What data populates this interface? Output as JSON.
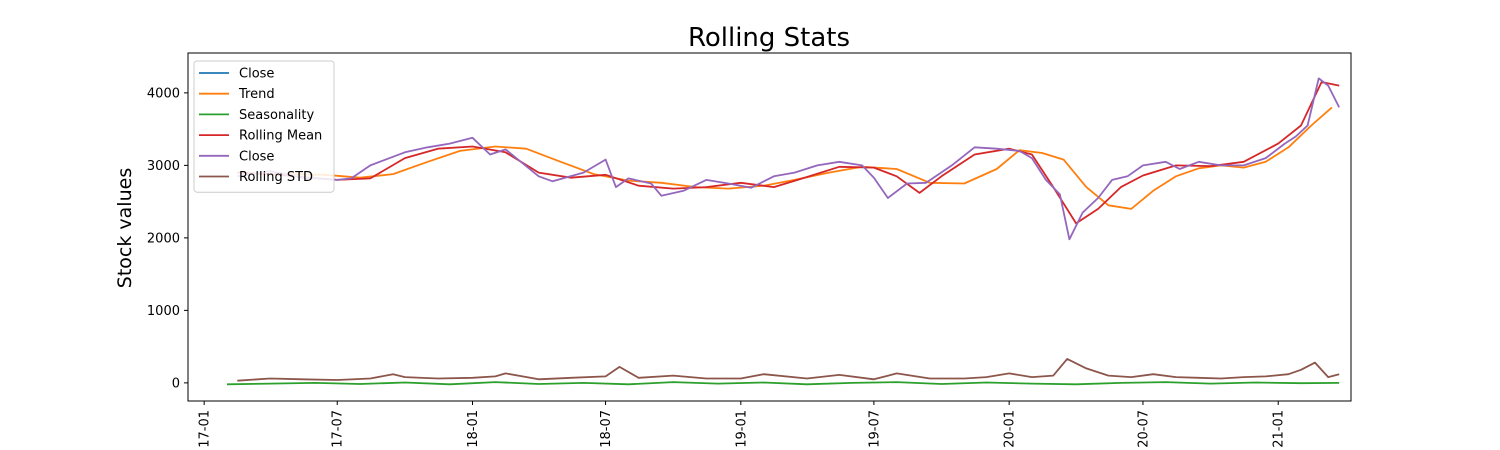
{
  "chart_data": {
    "type": "line",
    "title": "Rolling Stats",
    "xlabel": "",
    "ylabel": "Stock values",
    "x_type": "date",
    "xlim": [
      "2016-12-10",
      "2021-04-10"
    ],
    "ylim": [
      -250,
      4550
    ],
    "x_ticks": [
      {
        "date": "2017-01-01",
        "label": "17-01"
      },
      {
        "date": "2017-07-01",
        "label": "17-07"
      },
      {
        "date": "2018-01-01",
        "label": "18-01"
      },
      {
        "date": "2018-07-01",
        "label": "18-07"
      },
      {
        "date": "2019-01-01",
        "label": "19-01"
      },
      {
        "date": "2019-07-01",
        "label": "19-07"
      },
      {
        "date": "2020-01-01",
        "label": "20-01"
      },
      {
        "date": "2020-07-01",
        "label": "20-07"
      },
      {
        "date": "2021-01-01",
        "label": "21-01"
      }
    ],
    "y_ticks": [
      0,
      1000,
      2000,
      3000,
      4000
    ],
    "legend_position": "upper-left",
    "series": [
      {
        "name": "Close",
        "color": "#1f77b4",
        "x": [],
        "y": []
      },
      {
        "name": "Trend",
        "color": "#ff7f0e",
        "x": [
          "2017-03-15",
          "2017-05-01",
          "2017-06-15",
          "2017-08-01",
          "2017-09-15",
          "2017-11-01",
          "2017-12-15",
          "2018-02-01",
          "2018-03-15",
          "2018-05-01",
          "2018-06-15",
          "2018-08-01",
          "2018-09-15",
          "2018-11-01",
          "2018-12-15",
          "2019-02-01",
          "2019-03-15",
          "2019-05-01",
          "2019-06-15",
          "2019-08-01",
          "2019-09-15",
          "2019-11-01",
          "2019-12-15",
          "2020-01-15",
          "2020-02-15",
          "2020-03-15",
          "2020-04-15",
          "2020-05-15",
          "2020-06-15",
          "2020-07-15",
          "2020-08-15",
          "2020-09-15",
          "2020-10-15",
          "2020-11-15",
          "2020-12-15",
          "2021-01-15",
          "2021-02-15",
          "2021-03-15"
        ],
        "y": [
          2880,
          2880,
          2870,
          2830,
          2880,
          3050,
          3200,
          3260,
          3230,
          3050,
          2880,
          2790,
          2760,
          2700,
          2680,
          2720,
          2800,
          2900,
          2980,
          2950,
          2760,
          2750,
          2950,
          3210,
          3170,
          3080,
          2700,
          2450,
          2400,
          2650,
          2850,
          2960,
          3000,
          2970,
          3050,
          3250,
          3550,
          3800
        ]
      },
      {
        "name": "Seasonality",
        "color": "#2ca02c",
        "x": [
          "2017-02-01",
          "2017-04-01",
          "2017-06-01",
          "2017-08-01",
          "2017-10-01",
          "2017-12-01",
          "2018-02-01",
          "2018-04-01",
          "2018-06-01",
          "2018-08-01",
          "2018-10-01",
          "2018-12-01",
          "2019-02-01",
          "2019-04-01",
          "2019-06-01",
          "2019-08-01",
          "2019-10-01",
          "2019-12-01",
          "2020-02-01",
          "2020-04-01",
          "2020-06-01",
          "2020-08-01",
          "2020-10-01",
          "2020-12-01",
          "2021-02-01",
          "2021-03-25"
        ],
        "y": [
          -20,
          -10,
          0,
          -15,
          5,
          -20,
          10,
          -15,
          0,
          -20,
          10,
          -10,
          5,
          -20,
          0,
          10,
          -15,
          5,
          -10,
          -20,
          0,
          10,
          -10,
          5,
          -5,
          0
        ]
      },
      {
        "name": "Rolling Mean",
        "color": "#d62728",
        "x": [
          "2017-02-15",
          "2017-04-01",
          "2017-05-15",
          "2017-07-01",
          "2017-08-15",
          "2017-10-01",
          "2017-11-15",
          "2018-01-01",
          "2018-02-15",
          "2018-04-01",
          "2018-05-15",
          "2018-07-01",
          "2018-08-15",
          "2018-10-01",
          "2018-11-15",
          "2019-01-01",
          "2019-02-15",
          "2019-04-01",
          "2019-05-15",
          "2019-07-01",
          "2019-08-01",
          "2019-09-01",
          "2019-10-01",
          "2019-11-15",
          "2020-01-01",
          "2020-02-01",
          "2020-03-01",
          "2020-04-01",
          "2020-05-01",
          "2020-06-01",
          "2020-07-01",
          "2020-08-15",
          "2020-10-01",
          "2020-11-15",
          "2021-01-01",
          "2021-02-01",
          "2021-03-01",
          "2021-03-25"
        ],
        "y": [
          2900,
          2880,
          2840,
          2800,
          2820,
          3100,
          3230,
          3260,
          3180,
          2900,
          2830,
          2870,
          2720,
          2680,
          2700,
          2760,
          2700,
          2840,
          2980,
          2970,
          2850,
          2620,
          2850,
          3150,
          3230,
          3150,
          2700,
          2200,
          2400,
          2700,
          2860,
          3000,
          2990,
          3050,
          3300,
          3550,
          4150,
          4100
        ]
      },
      {
        "name": "Close",
        "color": "#9467bd",
        "x": [
          "2017-02-15",
          "2017-04-01",
          "2017-05-15",
          "2017-07-01",
          "2017-07-20",
          "2017-08-15",
          "2017-10-01",
          "2017-11-01",
          "2017-12-01",
          "2018-01-01",
          "2018-01-25",
          "2018-02-15",
          "2018-04-01",
          "2018-04-20",
          "2018-06-01",
          "2018-07-01",
          "2018-07-15",
          "2018-08-01",
          "2018-09-01",
          "2018-09-15",
          "2018-10-15",
          "2018-11-15",
          "2018-12-15",
          "2019-01-15",
          "2019-02-15",
          "2019-03-15",
          "2019-04-15",
          "2019-05-15",
          "2019-06-15",
          "2019-07-01",
          "2019-07-20",
          "2019-08-15",
          "2019-09-10",
          "2019-10-15",
          "2019-11-15",
          "2019-12-15",
          "2020-01-15",
          "2020-02-01",
          "2020-02-20",
          "2020-03-10",
          "2020-03-23",
          "2020-04-10",
          "2020-05-01",
          "2020-05-20",
          "2020-06-10",
          "2020-07-01",
          "2020-08-01",
          "2020-08-20",
          "2020-09-15",
          "2020-10-15",
          "2020-11-15",
          "2020-12-15",
          "2021-01-10",
          "2021-01-25",
          "2021-02-10",
          "2021-02-25",
          "2021-03-10",
          "2021-03-25"
        ],
        "y": [
          2850,
          2920,
          2830,
          2800,
          2820,
          3000,
          3180,
          3250,
          3300,
          3380,
          3150,
          3220,
          2850,
          2780,
          2900,
          3080,
          2700,
          2820,
          2750,
          2580,
          2650,
          2800,
          2750,
          2690,
          2850,
          2900,
          3000,
          3050,
          3000,
          2830,
          2550,
          2750,
          2760,
          3000,
          3250,
          3230,
          3200,
          3100,
          2800,
          2600,
          1980,
          2350,
          2550,
          2800,
          2850,
          3000,
          3050,
          2950,
          3050,
          3000,
          3000,
          3100,
          3300,
          3400,
          3550,
          4200,
          4100,
          3800
        ]
      },
      {
        "name": "Rolling STD",
        "color": "#8c564b",
        "x": [
          "2017-02-15",
          "2017-04-01",
          "2017-05-15",
          "2017-07-01",
          "2017-08-15",
          "2017-09-15",
          "2017-10-01",
          "2017-11-15",
          "2018-01-01",
          "2018-02-01",
          "2018-02-15",
          "2018-04-01",
          "2018-05-15",
          "2018-07-01",
          "2018-07-20",
          "2018-08-15",
          "2018-10-01",
          "2018-11-15",
          "2019-01-01",
          "2019-02-01",
          "2019-04-01",
          "2019-05-15",
          "2019-07-01",
          "2019-08-01",
          "2019-09-15",
          "2019-11-01",
          "2019-12-01",
          "2020-01-01",
          "2020-02-01",
          "2020-03-01",
          "2020-03-20",
          "2020-04-15",
          "2020-05-15",
          "2020-06-15",
          "2020-07-15",
          "2020-08-15",
          "2020-09-15",
          "2020-10-15",
          "2020-11-15",
          "2020-12-15",
          "2021-01-15",
          "2021-02-01",
          "2021-02-20",
          "2021-03-10",
          "2021-03-25"
        ],
        "y": [
          30,
          60,
          50,
          40,
          60,
          120,
          80,
          60,
          70,
          90,
          130,
          50,
          70,
          90,
          220,
          70,
          100,
          60,
          60,
          120,
          60,
          110,
          50,
          130,
          60,
          60,
          80,
          130,
          80,
          100,
          330,
          200,
          100,
          80,
          120,
          80,
          70,
          60,
          80,
          90,
          120,
          180,
          280,
          80,
          120
        ]
      }
    ]
  }
}
